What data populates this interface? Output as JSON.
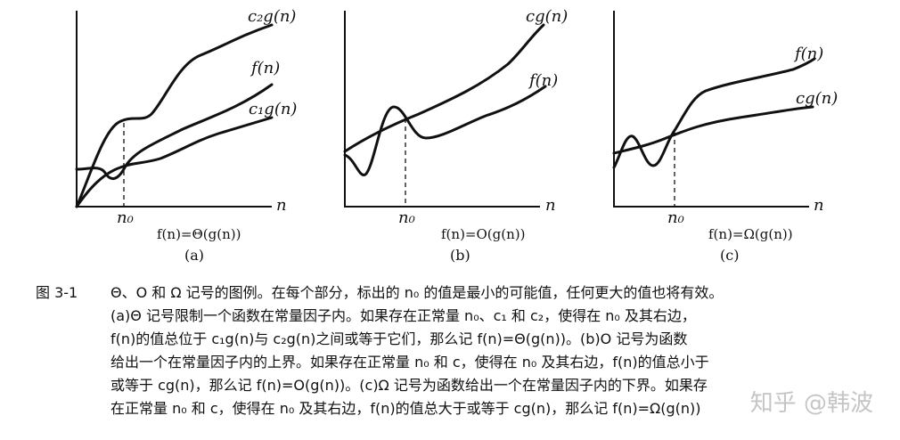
{
  "panels": [
    {
      "id": "a",
      "curves": [
        {
          "label": "c₂g(n)"
        },
        {
          "label": "f(n)"
        },
        {
          "label": "c₁g(n)"
        }
      ],
      "n0_label": "n₀",
      "n_label": "n",
      "equation": "f(n)=Θ(g(n))",
      "sublabel": "(a)"
    },
    {
      "id": "b",
      "curves": [
        {
          "label": "cg(n)"
        },
        {
          "label": "f(n)"
        }
      ],
      "n0_label": "n₀",
      "n_label": "n",
      "equation": "f(n)=O(g(n))",
      "sublabel": "(b)"
    },
    {
      "id": "c",
      "curves": [
        {
          "label": "f(n)"
        },
        {
          "label": "cg(n)"
        }
      ],
      "n0_label": "n₀",
      "n_label": "n",
      "equation": "f(n)=Ω(g(n))",
      "sublabel": "(c)"
    }
  ],
  "caption": {
    "figure_number": "图 3-1",
    "lines": [
      "Θ、O 和 Ω 记号的图例。在每个部分，标出的 n₀ 的值是最小的可能值，任何更大的值也将有效。",
      "(a)Θ 记号限制一个函数在常量因子内。如果存在正常量 n₀、c₁ 和 c₂，使得在 n₀ 及其右边，",
      "f(n)的值总位于 c₁g(n)与 c₂g(n)之间或等于它们，那么记 f(n)=Θ(g(n))。(b)O 记号为函数",
      "给出一个在常量因子内的上界。如果存在正常量 n₀ 和 c，使得在 n₀ 及其右边，f(n)的值总小于",
      "或等于 cg(n)，那么记 f(n)=O(g(n))。(c)Ω 记号为函数给出一个在常量因子内的下界。如果存",
      "在正常量 n₀ 和 c，使得在 n₀ 及其右边，f(n)的值总大于或等于 cg(n)，那么记 f(n)=Ω(g(n))"
    ]
  },
  "watermark": "知乎 @韩波"
}
